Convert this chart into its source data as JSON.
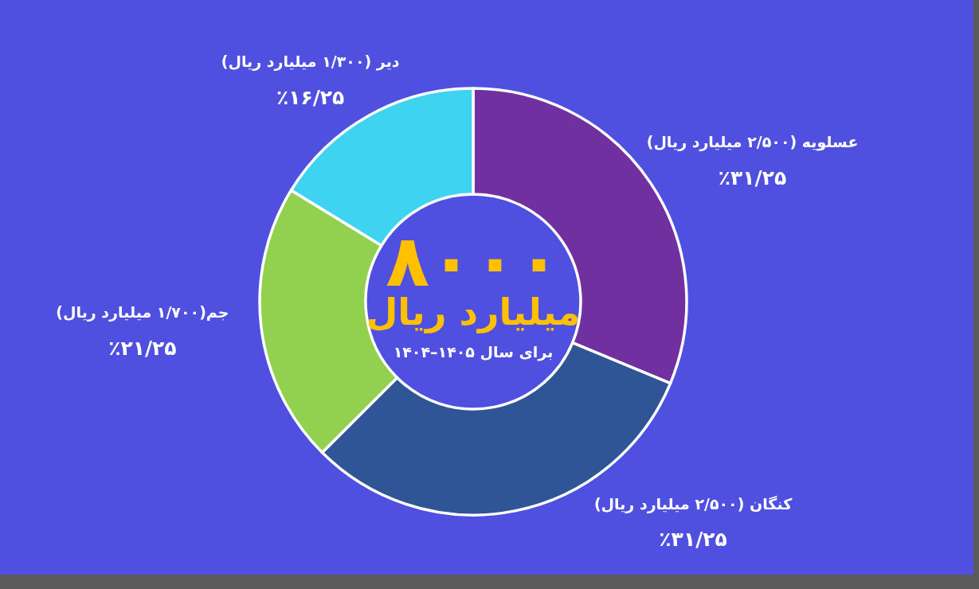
{
  "chart_data": {
    "type": "donut",
    "categories": [
      "عسلویه (۲/۵۰۰ میلیارد ریال)",
      "کنگان (۲/۵۰۰ میلیارد ریال)",
      "جم(۱/۷۰۰ میلیارد ریال)",
      "دیر (۱/۳۰۰ میلیارد ریال)"
    ],
    "values": [
      31.25,
      31.25,
      21.25,
      16.25
    ],
    "colors": [
      "#7030a0",
      "#2f5597",
      "#92d050",
      "#3fd3f2"
    ],
    "value_labels": [
      "٪۳۱/۲۵",
      "٪۳۱/۲۵",
      "٪۲۱/۲۵",
      "٪۱۶/۲۵"
    ],
    "annotations": [
      "۸۰۰۰",
      "میلیارد ریال",
      "برای سال ۱۴۰۵–۱۴۰۴"
    ]
  }
}
